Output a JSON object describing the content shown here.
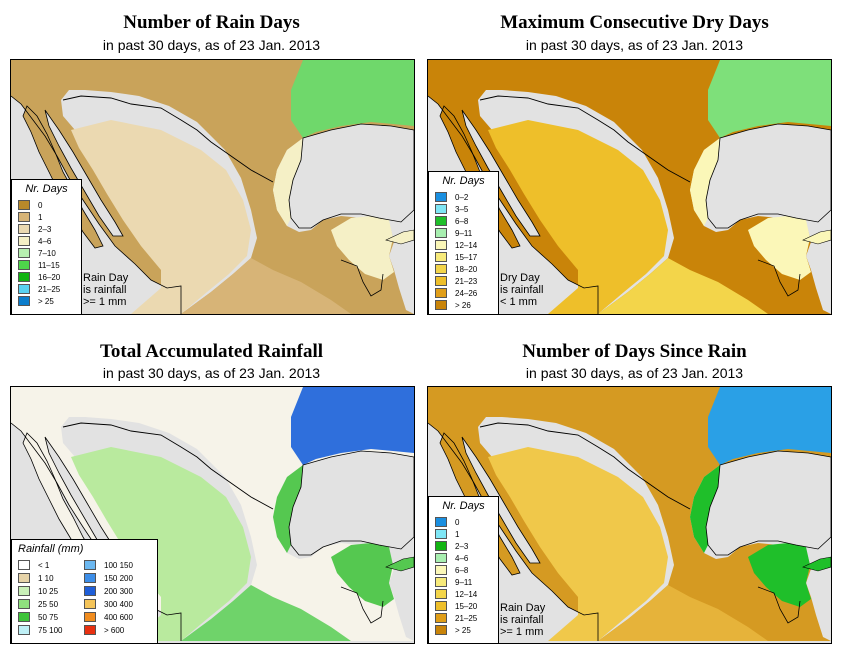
{
  "panels": [
    {
      "title": "Number of Rain Days",
      "subtitle": "in past 30 days, as of  23 Jan. 2013",
      "legend_title": "Nr. Days",
      "legend": [
        {
          "label": "0",
          "color": "#b8892a"
        },
        {
          "label": "1",
          "color": "#d7b477"
        },
        {
          "label": "2–3",
          "color": "#ebd9b1"
        },
        {
          "label": "4–6",
          "color": "#f5f0c6"
        },
        {
          "label": "7–10",
          "color": "#b7f0b0"
        },
        {
          "label": "11–15",
          "color": "#4ed64a"
        },
        {
          "label": "16–20",
          "color": "#12b412"
        },
        {
          "label": "21–25",
          "color": "#59d1f0"
        },
        {
          "label": "> 25",
          "color": "#0b7dcc"
        }
      ],
      "note": [
        "Rain Day",
        "is rainfall",
        ">= 1 mm"
      ],
      "fill": {
        "north": "#c9a35a",
        "center": "#ebd9b1",
        "south": "#d7b477",
        "east": "#6fd86b",
        "gulf_coast": "#f5f0c6"
      }
    },
    {
      "title": "Maximum Consecutive Dry Days",
      "subtitle": "in past 30 days, as of  23 Jan. 2013",
      "legend_title": "Nr. Days",
      "legend": [
        {
          "label": "0–2",
          "color": "#1a8fe0"
        },
        {
          "label": "3–5",
          "color": "#7fe6f5"
        },
        {
          "label": "6–8",
          "color": "#1fbf2a"
        },
        {
          "label": "9–11",
          "color": "#a8efb0"
        },
        {
          "label": "12–14",
          "color": "#fbf7b8"
        },
        {
          "label": "15–17",
          "color": "#f7ea7a"
        },
        {
          "label": "18–20",
          "color": "#f3d54a"
        },
        {
          "label": "21–23",
          "color": "#eebf2a"
        },
        {
          "label": "24–26",
          "color": "#e09e18"
        },
        {
          "label": "> 26",
          "color": "#c98409"
        }
      ],
      "note": [
        "Dry Day",
        "is rainfall",
        "< 1 mm"
      ],
      "fill": {
        "north": "#c98409",
        "center": "#eebf2a",
        "south": "#f3d54a",
        "east": "#7ee07a",
        "gulf_coast": "#fbf7b8"
      }
    },
    {
      "title": "Total Accumulated Rainfall",
      "subtitle": "in past 30 days, as of  23 Jan. 2013",
      "legend_title": "Rainfall (mm)",
      "legend": [
        {
          "label": "< 1",
          "color": "#ffffff"
        },
        {
          "label": "1    10",
          "color": "#e6d3a8"
        },
        {
          "label": "10   25",
          "color": "#c9f0b8"
        },
        {
          "label": "25   50",
          "color": "#8fe07e"
        },
        {
          "label": "50   75",
          "color": "#3fc43a"
        },
        {
          "label": "75  100",
          "color": "#bff0f6"
        },
        {
          "label": "100  150",
          "color": "#6cb8f0"
        },
        {
          "label": "150  200",
          "color": "#3d8ee8"
        },
        {
          "label": "200  300",
          "color": "#1f5ed8"
        },
        {
          "label": "300  400",
          "color": "#f4c45a"
        },
        {
          "label": "400  600",
          "color": "#f08c1e"
        },
        {
          "label": "> 600",
          "color": "#e83010"
        }
      ],
      "note": [],
      "fill": {
        "north": "#f6f3e9",
        "center": "#b9ea9e",
        "south": "#6fd36a",
        "east": "#2f6fdc",
        "gulf_coast": "#55c850"
      }
    },
    {
      "title": "Number of Days Since Rain",
      "subtitle": "in past 30 days, as of  23 Jan. 2013",
      "legend_title": "Nr. Days",
      "legend": [
        {
          "label": "0",
          "color": "#1a8fe0"
        },
        {
          "label": "1",
          "color": "#7fe6f5"
        },
        {
          "label": "2–3",
          "color": "#12b412"
        },
        {
          "label": "4–6",
          "color": "#a8efb0"
        },
        {
          "label": "6–8",
          "color": "#fbf7b8"
        },
        {
          "label": "9–11",
          "color": "#f7ea7a"
        },
        {
          "label": "12–14",
          "color": "#f3d54a"
        },
        {
          "label": "15–20",
          "color": "#eebf2a"
        },
        {
          "label": "21–25",
          "color": "#e09e18"
        },
        {
          "label": "> 25",
          "color": "#c98409"
        }
      ],
      "note": [
        "Rain Day",
        "is rainfall",
        ">= 1 mm"
      ],
      "fill": {
        "north": "#d59a22",
        "center": "#f0c84a",
        "south": "#e6b33a",
        "east": "#2aa0e6",
        "gulf_coast": "#1fbf2a"
      }
    }
  ],
  "map_colors": {
    "ocean": "#e2e2e2",
    "border": "#000000"
  }
}
